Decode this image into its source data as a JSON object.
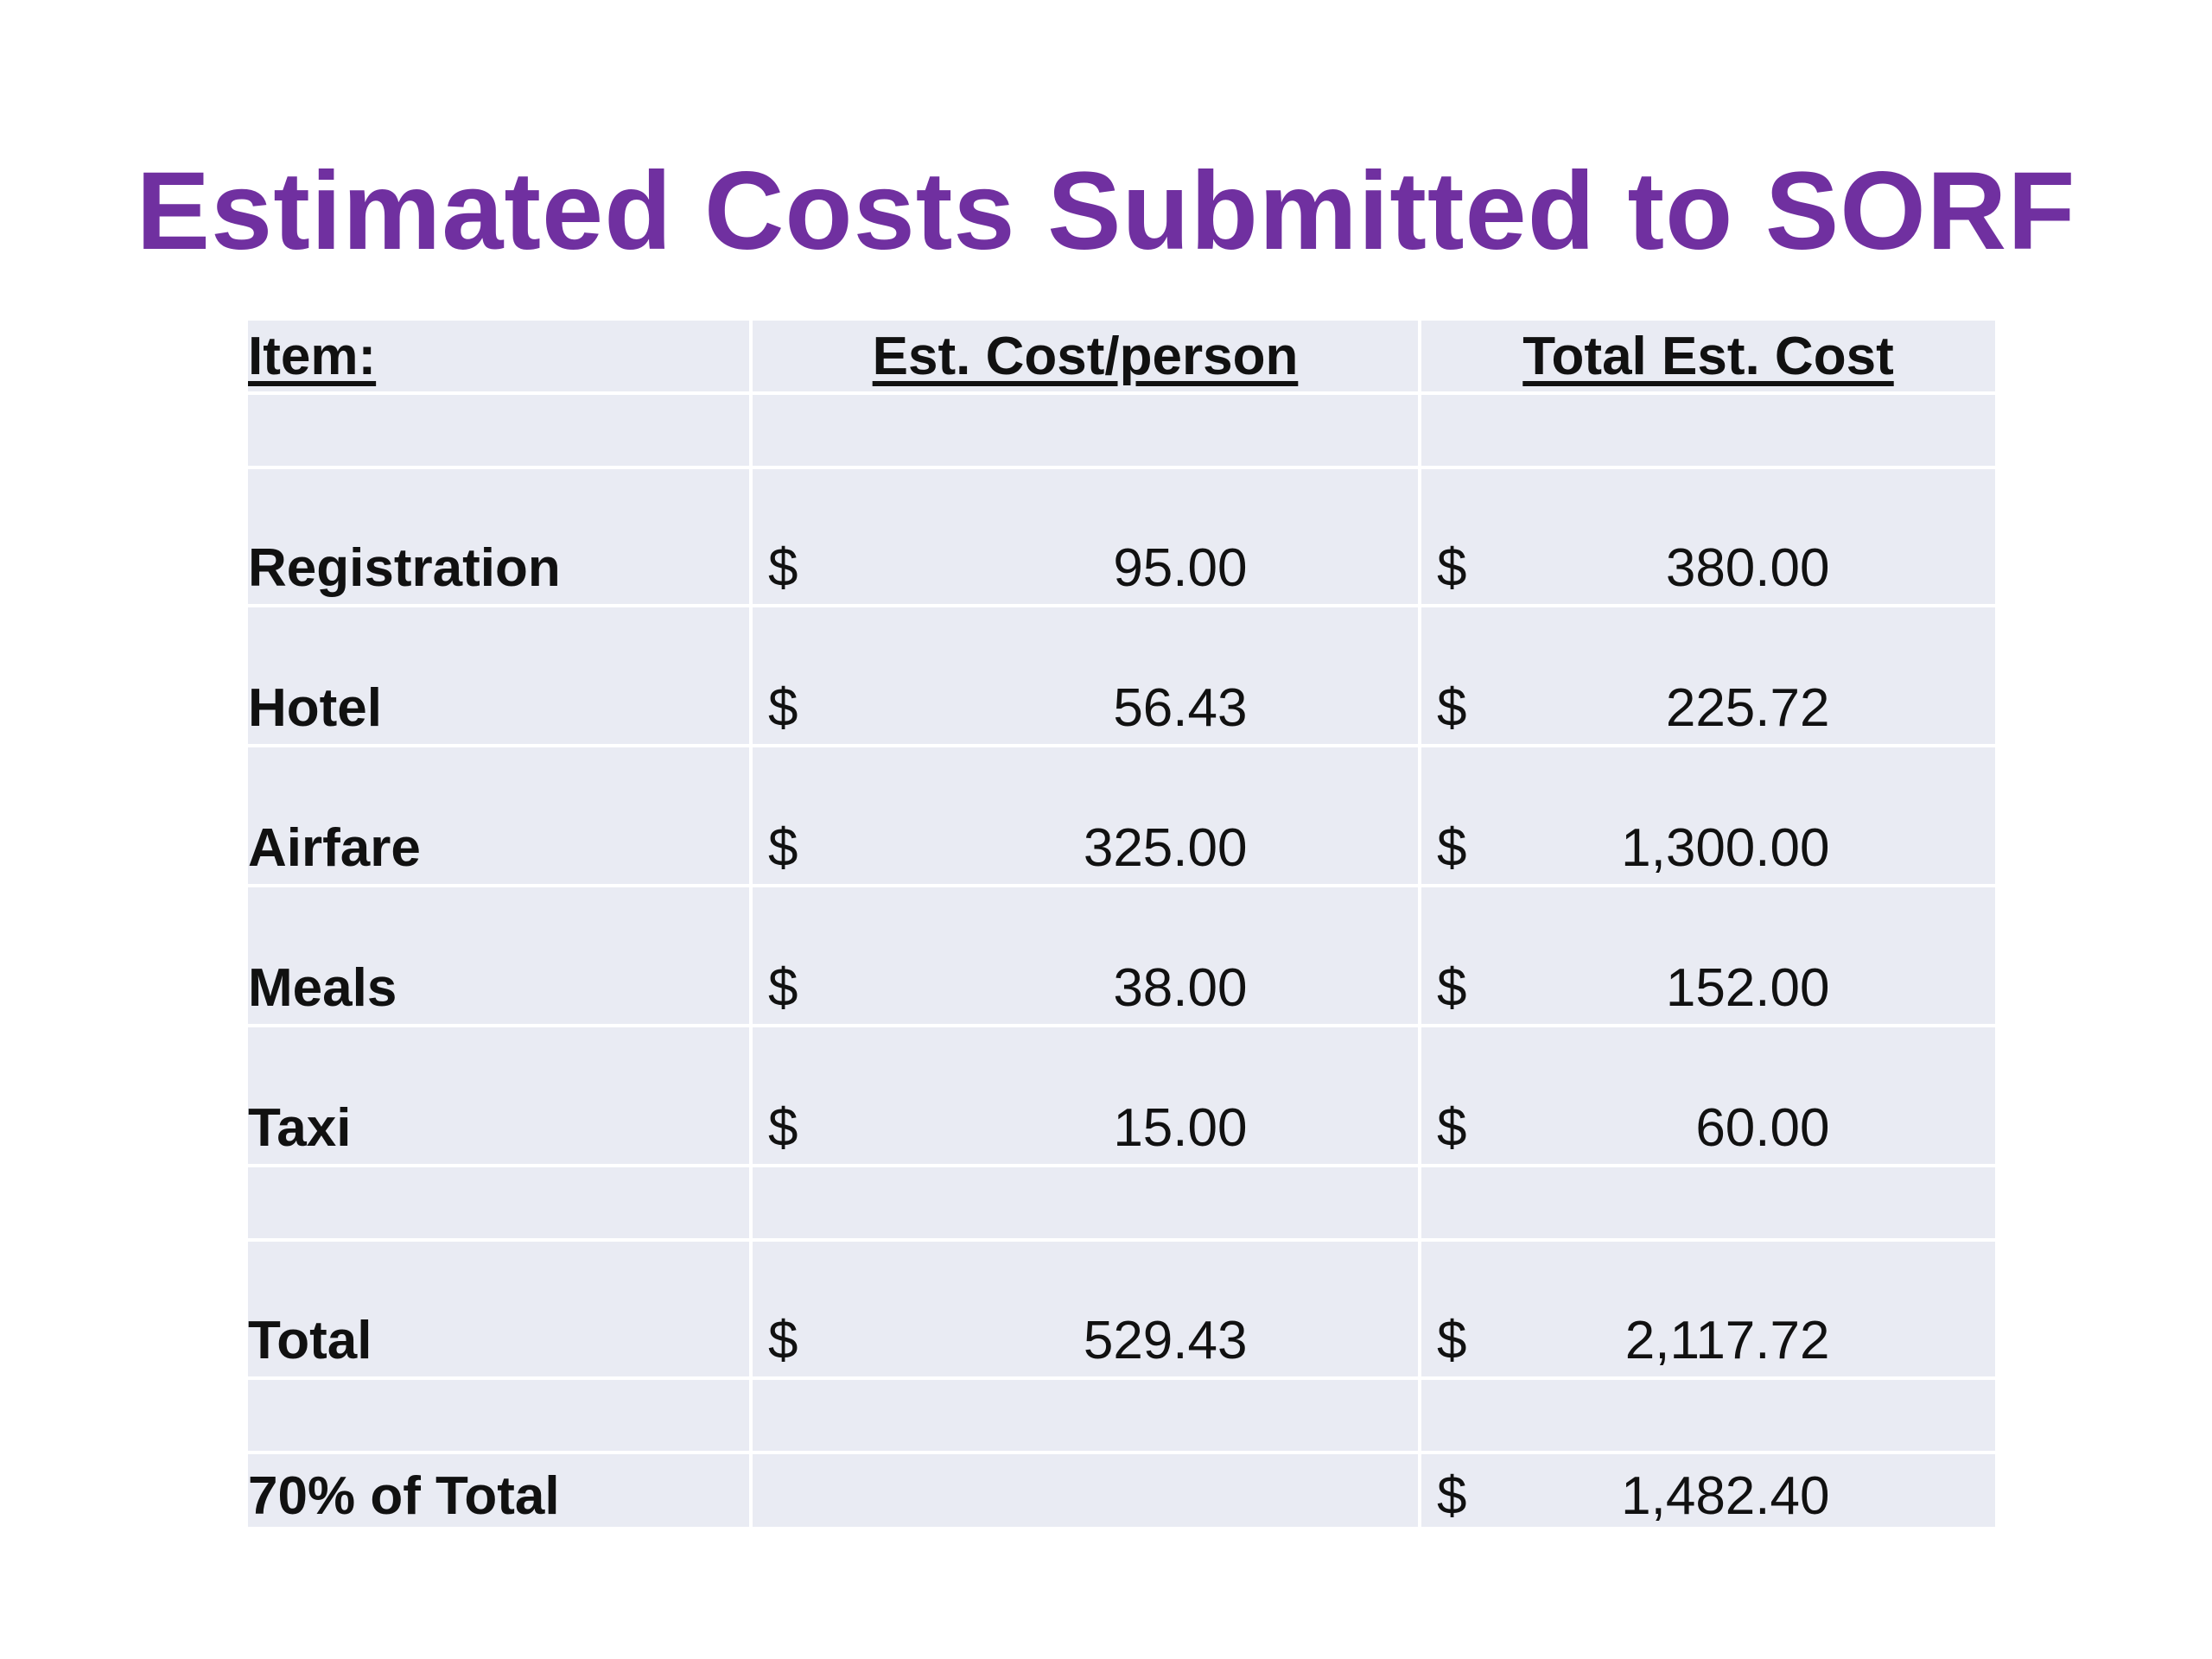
{
  "slide": {
    "title": "Estimated Costs Submitted to SORF"
  },
  "table": {
    "headers": {
      "item": "Item:",
      "per_person": "Est. Cost/person",
      "total": "Total Est. Cost"
    },
    "currency_symbol": "$",
    "rows": [
      {
        "item": "Registration",
        "per_person": "95.00",
        "total": "380.00"
      },
      {
        "item": "Hotel",
        "per_person": "56.43",
        "total": "225.72"
      },
      {
        "item": "Airfare",
        "per_person": "325.00",
        "total": "1,300.00"
      },
      {
        "item": "Meals",
        "per_person": "38.00",
        "total": "152.00"
      },
      {
        "item": "Taxi",
        "per_person": "15.00",
        "total": "60.00"
      }
    ],
    "total_row": {
      "item": "Total",
      "per_person": "529.43",
      "total": "2,117.72"
    },
    "percent_row": {
      "item": "70% of Total",
      "total": "1,482.40"
    }
  },
  "colors": {
    "title": "#7030A0",
    "cell_background": "#E9EBF3",
    "text": "#111111"
  }
}
